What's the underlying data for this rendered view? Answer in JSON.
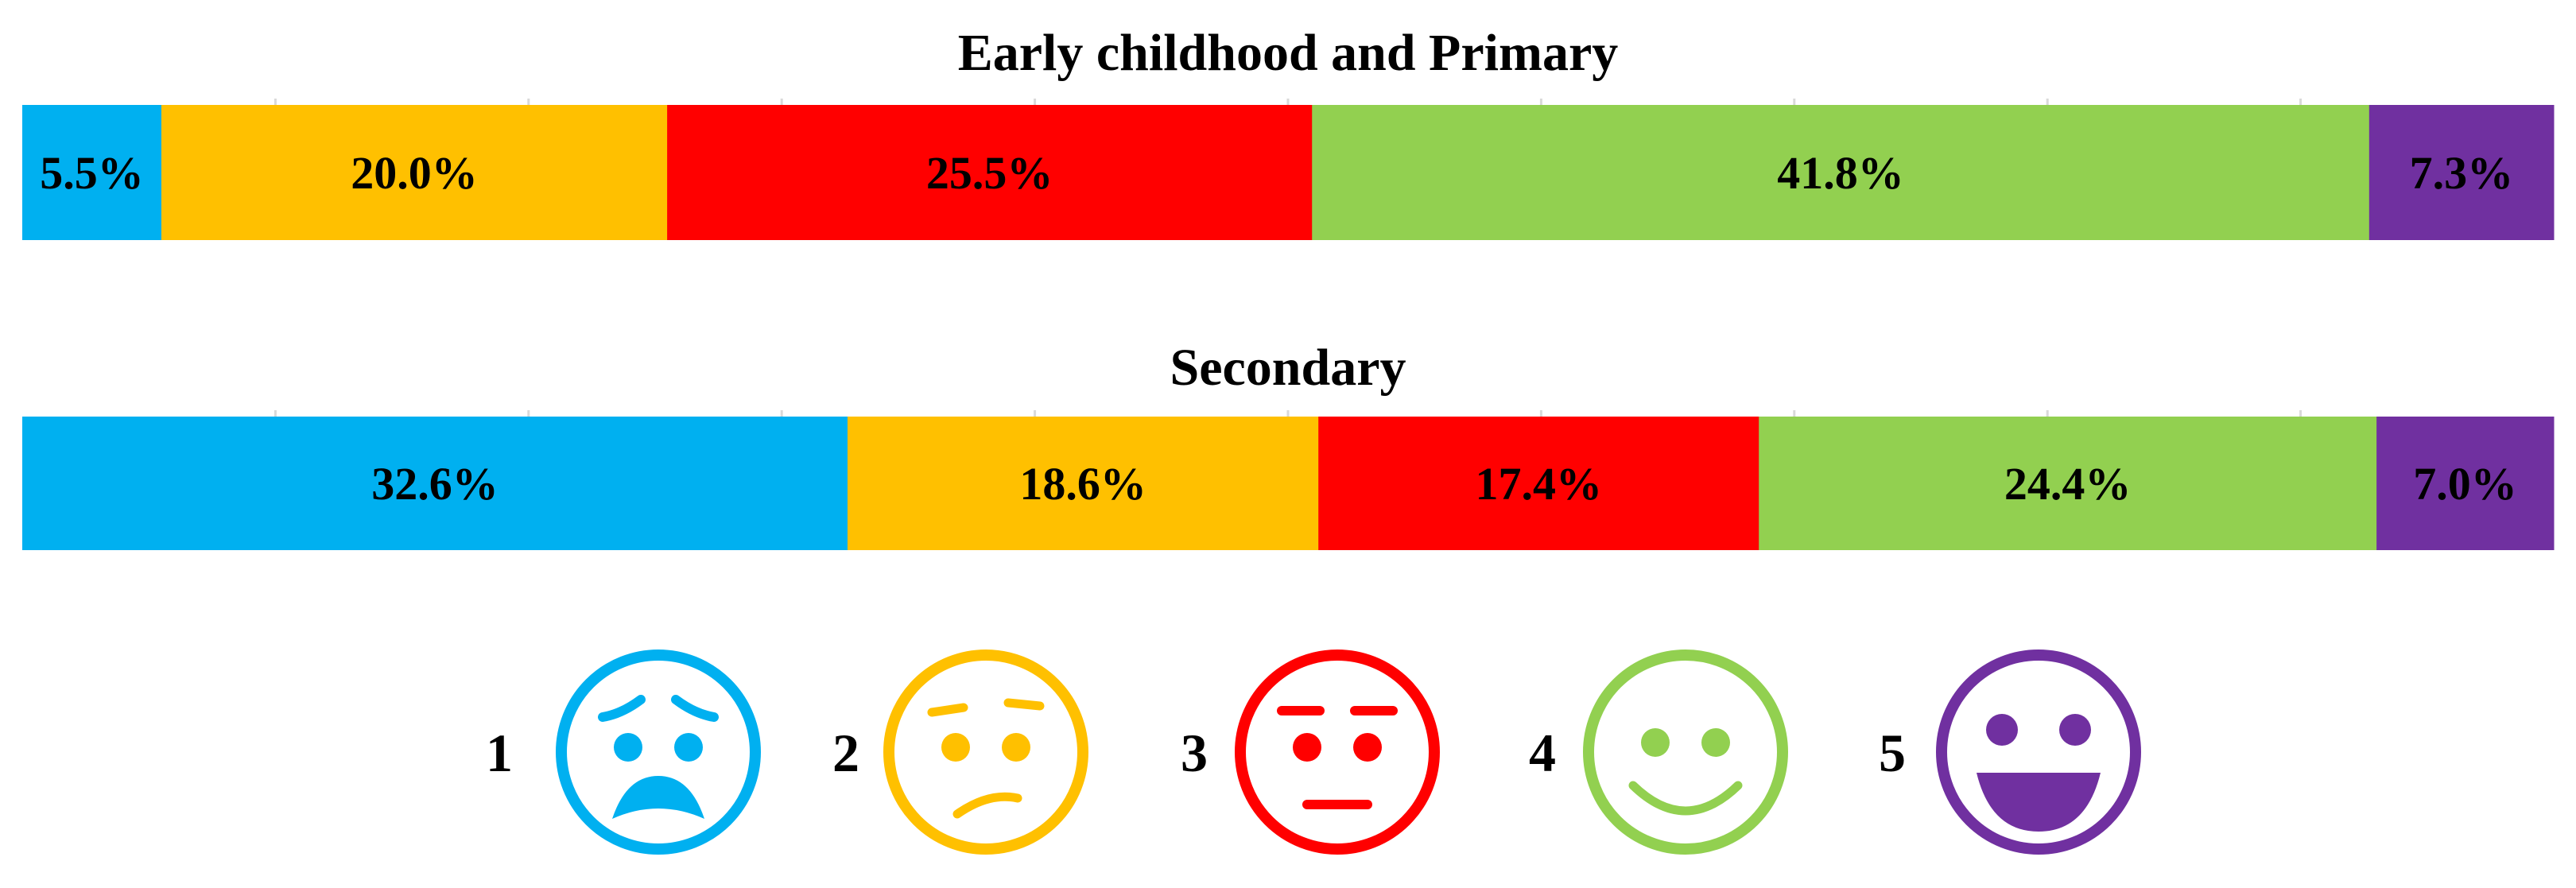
{
  "chart_data": {
    "type": "stacked-bar-100",
    "categories": [
      "1",
      "2",
      "3",
      "4",
      "5"
    ],
    "colors": [
      "#00B0F0",
      "#FFC000",
      "#FF0000",
      "#92D050",
      "#7030A0"
    ],
    "bars": [
      {
        "title": "Early childhood and Primary",
        "values": [
          5.5,
          20.0,
          25.5,
          41.8,
          7.3
        ],
        "labels": [
          "5.5%",
          "20.0%",
          "25.5%",
          "41.8%",
          "7.3%"
        ]
      },
      {
        "title": "Secondary",
        "values": [
          32.6,
          18.6,
          17.4,
          24.4,
          7.0
        ],
        "labels": [
          "32.6%",
          "18.6%",
          "17.4%",
          "24.4%",
          "7.0%"
        ]
      }
    ],
    "xlim": [
      0,
      100
    ],
    "grid": true,
    "legend": {
      "placement": "bottom-center",
      "items": [
        {
          "number": "1",
          "icon": "worried-face-icon",
          "color": "#00B0F0"
        },
        {
          "number": "2",
          "icon": "confused-face-icon",
          "color": "#FFC000"
        },
        {
          "number": "3",
          "icon": "neutral-face-icon",
          "color": "#FF0000"
        },
        {
          "number": "4",
          "icon": "smiling-face-icon",
          "color": "#92D050"
        },
        {
          "number": "5",
          "icon": "grinning-face-icon",
          "color": "#7030A0"
        }
      ]
    }
  }
}
